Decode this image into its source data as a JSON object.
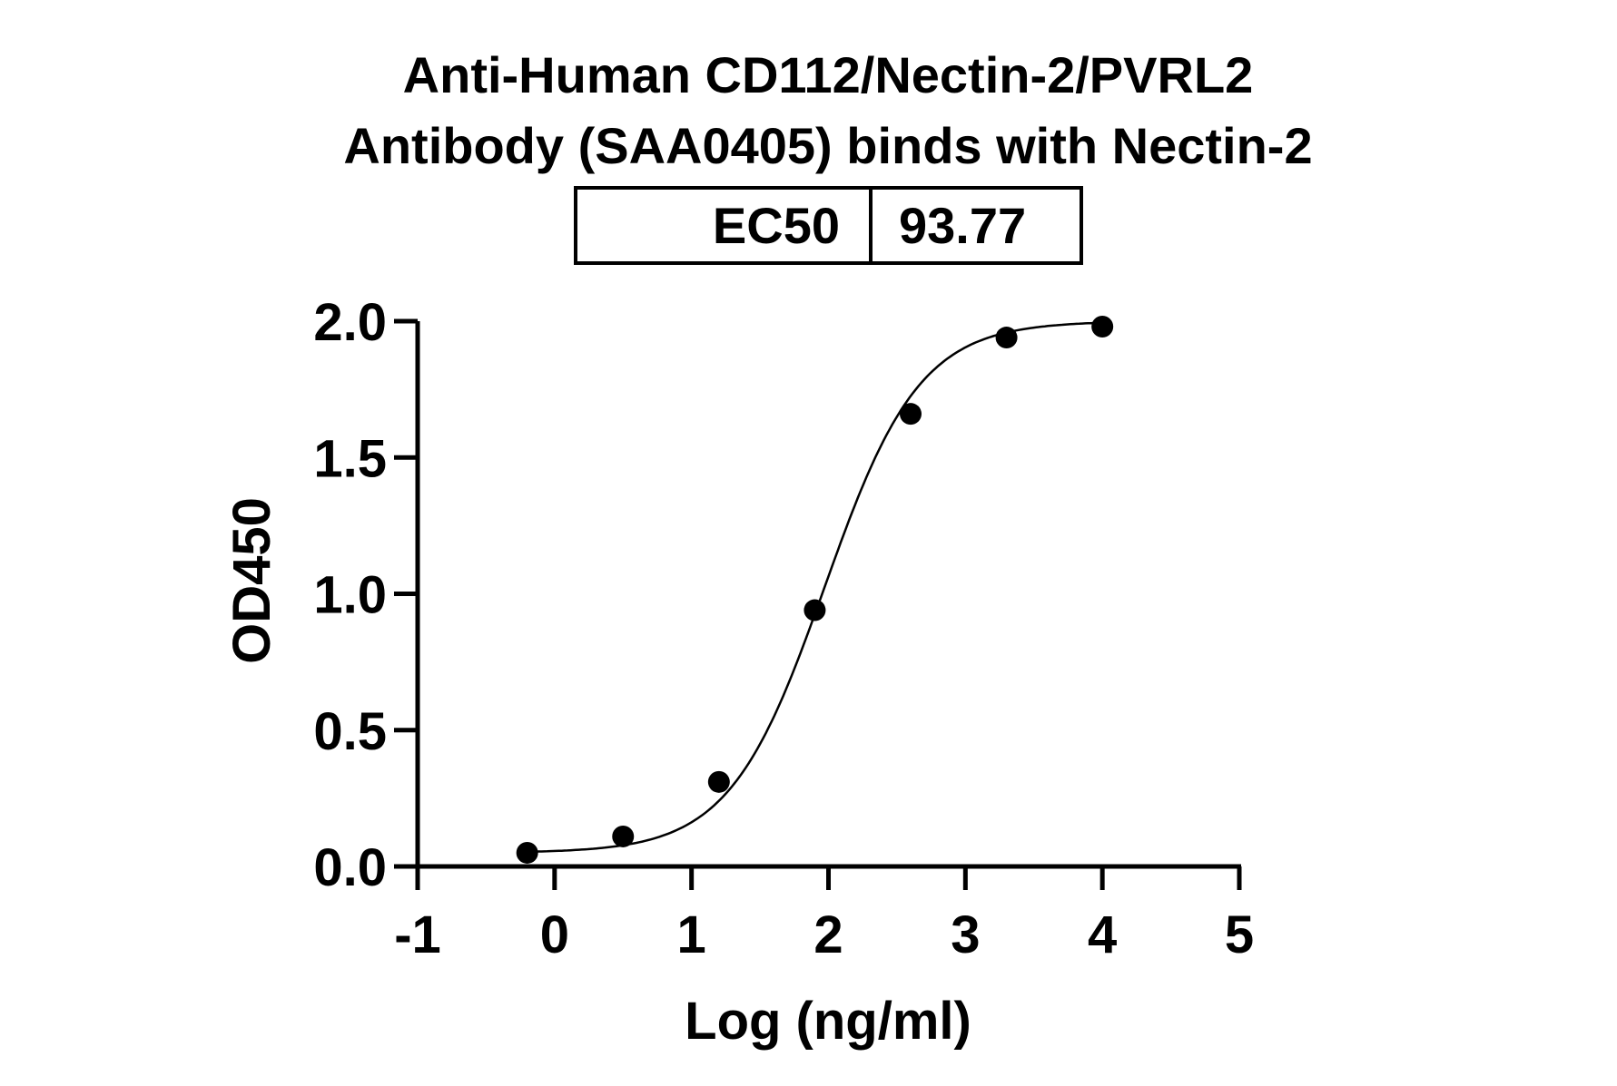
{
  "chart_data": {
    "type": "scatter",
    "title": [
      "Anti-Human CD112/Nectin-2/PVRL2",
      "Antibody (SAA0405) binds with Nectin-2"
    ],
    "ec50_table": {
      "label": "EC50",
      "value": "93.77"
    },
    "xlabel": "Log (ng/ml)",
    "ylabel": "OD450",
    "xlim": [
      -1,
      5
    ],
    "ylim": [
      0,
      2.0
    ],
    "xticks": [
      "-1",
      "0",
      "1",
      "2",
      "3",
      "4",
      "5"
    ],
    "yticks": [
      "0.0",
      "0.5",
      "1.0",
      "1.5",
      "2.0"
    ],
    "grid": false,
    "points": {
      "x": [
        -0.2,
        0.5,
        1.2,
        1.9,
        2.6,
        3.3,
        4.0
      ],
      "y": [
        0.05,
        0.11,
        0.31,
        0.94,
        1.66,
        1.94,
        1.98
      ]
    },
    "fit": {
      "model": "4PL sigmoid",
      "bottom": 0.05,
      "top": 2.0,
      "logEC50": 1.972,
      "hill": 1.25
    },
    "colors": {
      "points": "#000000",
      "curve": "#000000"
    }
  }
}
